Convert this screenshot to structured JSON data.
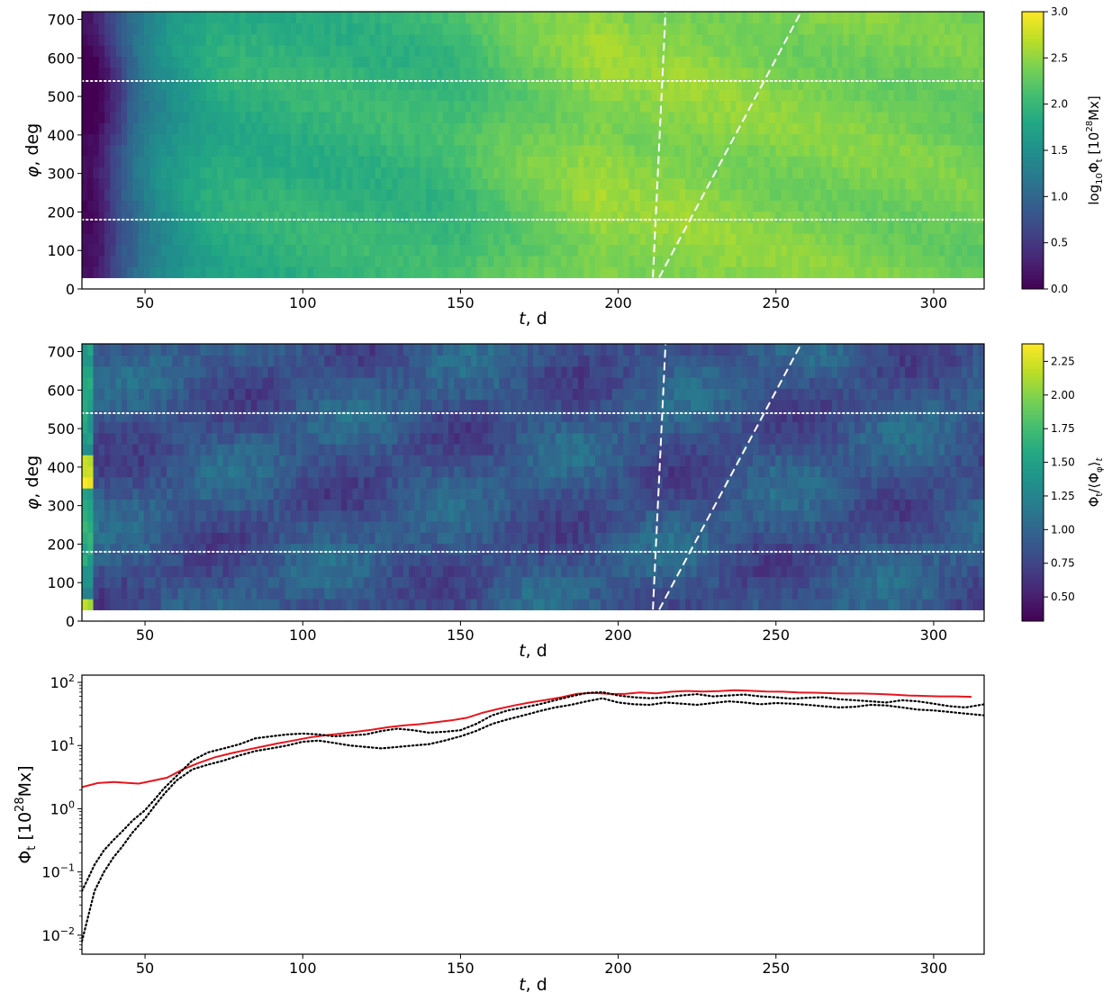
{
  "chart_data": [
    {
      "type": "heatmap",
      "id": "panel1",
      "xlabel_var": "t",
      "xlabel_unit": ", d",
      "ylabel_var": "φ",
      "ylabel_unit": ", deg",
      "xlim": [
        30,
        316
      ],
      "ylim": [
        0,
        720
      ],
      "data_y_range": [
        30,
        720
      ],
      "x_ticks": [
        50,
        100,
        150,
        200,
        250,
        300
      ],
      "x_tick_labels": [
        "50",
        "100",
        "150",
        "200",
        "250",
        "300"
      ],
      "y_ticks": [
        0,
        100,
        200,
        300,
        400,
        500,
        600,
        700
      ],
      "y_tick_labels": [
        "0",
        "100",
        "200",
        "300",
        "400",
        "500",
        "600",
        "700"
      ],
      "colormap": "viridis",
      "colorbar": {
        "label_prefix": "log",
        "label_sub": "10",
        "label_mid": "Φ",
        "label_sub2": "t",
        "label_bracket": " [10",
        "label_sup": "28",
        "label_suffix": "Mx]",
        "vmin": 0.0,
        "vmax": 3.0,
        "ticks": [
          0.0,
          0.5,
          1.0,
          1.5,
          2.0,
          2.5,
          3.0
        ],
        "tick_labels": [
          "0.0",
          "0.5",
          "1.0",
          "1.5",
          "2.0",
          "2.5",
          "3.0"
        ]
      },
      "time_profile": [
        [
          30,
          0.02
        ],
        [
          33,
          0.05
        ],
        [
          36,
          0.2
        ],
        [
          40,
          0.55
        ],
        [
          45,
          0.95
        ],
        [
          50,
          1.25
        ],
        [
          55,
          1.45
        ],
        [
          60,
          1.6
        ],
        [
          70,
          1.8
        ],
        [
          80,
          1.88
        ],
        [
          100,
          1.93
        ],
        [
          120,
          1.96
        ],
        [
          140,
          2.0
        ],
        [
          150,
          2.05
        ],
        [
          160,
          2.2
        ],
        [
          170,
          2.3
        ],
        [
          185,
          2.42
        ],
        [
          195,
          2.52
        ],
        [
          205,
          2.45
        ],
        [
          220,
          2.48
        ],
        [
          235,
          2.45
        ],
        [
          250,
          2.42
        ],
        [
          270,
          2.4
        ],
        [
          290,
          2.36
        ],
        [
          316,
          2.33
        ]
      ],
      "hlines_dotted": [
        180,
        540
      ],
      "dashed_lines": [
        {
          "x": [
            211,
            215
          ],
          "y": [
            30,
            720
          ]
        },
        {
          "x": [
            213,
            258
          ],
          "y": [
            30,
            720
          ]
        }
      ]
    },
    {
      "type": "heatmap",
      "id": "panel2",
      "xlabel_var": "t",
      "xlabel_unit": ", d",
      "ylabel_var": "φ",
      "ylabel_unit": ", deg",
      "xlim": [
        30,
        316
      ],
      "ylim": [
        0,
        720
      ],
      "data_y_range": [
        30,
        720
      ],
      "x_ticks": [
        50,
        100,
        150,
        200,
        250,
        300
      ],
      "x_tick_labels": [
        "50",
        "100",
        "150",
        "200",
        "250",
        "300"
      ],
      "y_ticks": [
        0,
        100,
        200,
        300,
        400,
        500,
        600,
        700
      ],
      "y_tick_labels": [
        "0",
        "100",
        "200",
        "300",
        "400",
        "500",
        "600",
        "700"
      ],
      "colormap": "viridis",
      "colorbar": {
        "label_mid": "Φ",
        "label_sub2": "t",
        "label_div": "/⟨Φ",
        "label_sub3": "φ",
        "label_close": "⟩",
        "label_sub4": "t",
        "vmin": 0.32,
        "vmax": 2.38,
        "ticks": [
          0.5,
          0.75,
          1.0,
          1.25,
          1.5,
          1.75,
          2.0,
          2.25
        ],
        "tick_labels": [
          "0.50",
          "0.75",
          "1.00",
          "1.25",
          "1.50",
          "1.75",
          "2.00",
          "2.25"
        ]
      },
      "base_value": 0.88,
      "hlines_dotted": [
        180,
        540
      ],
      "dashed_lines": [
        {
          "x": [
            211,
            215
          ],
          "y": [
            30,
            720
          ]
        },
        {
          "x": [
            213,
            258
          ],
          "y": [
            30,
            720
          ]
        }
      ]
    },
    {
      "type": "line",
      "id": "panel3",
      "xlabel_var": "t",
      "xlabel_unit": ", d",
      "ylabel_main": "Φ",
      "ylabel_sub": "t",
      "ylabel_bracket": " [10",
      "ylabel_sup": "28",
      "ylabel_suffix": "Mx]",
      "yscale": "log",
      "xlim": [
        30,
        316
      ],
      "ylim": [
        0.005,
        130
      ],
      "x_ticks": [
        50,
        100,
        150,
        200,
        250,
        300
      ],
      "x_tick_labels": [
        "50",
        "100",
        "150",
        "200",
        "250",
        "300"
      ],
      "y_ticks": [
        0.01,
        0.1,
        1,
        10,
        100
      ],
      "y_tick_base": "10",
      "y_tick_exps": [
        "−2",
        "−1",
        "0",
        "1",
        "2"
      ],
      "series": [
        {
          "style": "solid",
          "color": "#e8141c",
          "x": [
            30,
            35,
            40,
            45,
            48,
            52,
            57,
            62,
            67,
            72,
            77,
            82,
            87,
            92,
            97,
            102,
            107,
            112,
            117,
            122,
            127,
            132,
            137,
            142,
            147,
            152,
            157,
            162,
            167,
            172,
            177,
            182,
            187,
            192,
            197,
            202,
            207,
            212,
            217,
            222,
            227,
            232,
            237,
            242,
            247,
            252,
            257,
            262,
            267,
            272,
            277,
            282,
            287,
            292,
            297,
            302,
            307,
            312
          ],
          "y": [
            2.2,
            2.55,
            2.65,
            2.55,
            2.5,
            2.75,
            3.1,
            4.2,
            5.3,
            6.5,
            7.5,
            8.5,
            9.6,
            10.8,
            12.0,
            13.4,
            14.5,
            15.4,
            16.5,
            17.8,
            19.5,
            20.8,
            21.8,
            23.3,
            25.0,
            27.5,
            33.0,
            38.0,
            43.0,
            48.0,
            52.5,
            58.0,
            66.0,
            68.0,
            66.0,
            65.5,
            69.0,
            67.0,
            71.0,
            73.0,
            71.5,
            72.5,
            75.0,
            73.5,
            71.5,
            71.0,
            69.0,
            68.5,
            67.5,
            66.5,
            66.5,
            65.5,
            64.0,
            62.0,
            61.0,
            60.0,
            60.0,
            59.0
          ]
        },
        {
          "style": "dotted",
          "color": "#000000",
          "x": [
            30,
            32,
            34,
            37,
            40,
            43,
            46,
            50,
            53,
            56,
            60,
            65,
            70,
            75,
            80,
            85,
            90,
            95,
            100,
            105,
            110,
            115,
            120,
            125,
            130,
            135,
            140,
            145,
            150,
            155,
            160,
            165,
            170,
            175,
            180,
            185,
            190,
            195,
            200,
            205,
            210,
            215,
            220,
            225,
            230,
            235,
            240,
            245,
            250,
            255,
            260,
            265,
            270,
            275,
            280,
            285,
            290,
            295,
            300,
            305,
            310,
            316
          ],
          "y": [
            0.05,
            0.08,
            0.13,
            0.22,
            0.32,
            0.45,
            0.65,
            0.95,
            1.4,
            2.1,
            3.3,
            5.8,
            7.8,
            9.0,
            10.5,
            13.0,
            14.0,
            15.0,
            15.5,
            15.0,
            14.0,
            14.5,
            15.0,
            17.0,
            18.5,
            17.5,
            16.0,
            16.5,
            17.5,
            22.0,
            30.0,
            36.0,
            40.0,
            45.0,
            52.0,
            60.0,
            68.0,
            70.0,
            62.0,
            58.0,
            56.0,
            58.0,
            62.0,
            65.0,
            60.0,
            62.0,
            64.0,
            60.0,
            58.0,
            55.0,
            57.0,
            58.0,
            54.0,
            52.0,
            50.0,
            48.0,
            52.0,
            50.0,
            46.0,
            42.0,
            40.0,
            45.0
          ]
        },
        {
          "style": "dotted",
          "color": "#000000",
          "x": [
            30,
            32,
            34,
            37,
            40,
            43,
            46,
            50,
            53,
            56,
            60,
            65,
            70,
            75,
            80,
            85,
            90,
            95,
            100,
            105,
            110,
            115,
            120,
            125,
            130,
            135,
            140,
            145,
            150,
            155,
            160,
            165,
            170,
            175,
            180,
            185,
            190,
            195,
            200,
            205,
            210,
            215,
            220,
            225,
            230,
            235,
            240,
            245,
            250,
            255,
            260,
            265,
            270,
            275,
            280,
            285,
            290,
            295,
            300,
            305,
            310,
            316
          ],
          "y": [
            0.008,
            0.02,
            0.05,
            0.1,
            0.17,
            0.26,
            0.42,
            0.7,
            1.1,
            1.7,
            2.8,
            4.2,
            5.0,
            5.8,
            7.0,
            8.2,
            9.0,
            10.0,
            11.5,
            12.0,
            11.0,
            10.0,
            9.5,
            9.0,
            9.5,
            10.0,
            10.5,
            12.0,
            14.0,
            17.0,
            22.0,
            26.0,
            30.0,
            35.0,
            40.0,
            44.0,
            50.0,
            56.0,
            48.0,
            45.0,
            44.0,
            48.0,
            46.0,
            44.0,
            47.0,
            50.0,
            48.0,
            45.0,
            47.0,
            46.0,
            44.0,
            42.0,
            40.0,
            41.0,
            44.0,
            43.0,
            40.0,
            37.0,
            36.0,
            34.0,
            32.0,
            30.0
          ]
        }
      ]
    }
  ]
}
